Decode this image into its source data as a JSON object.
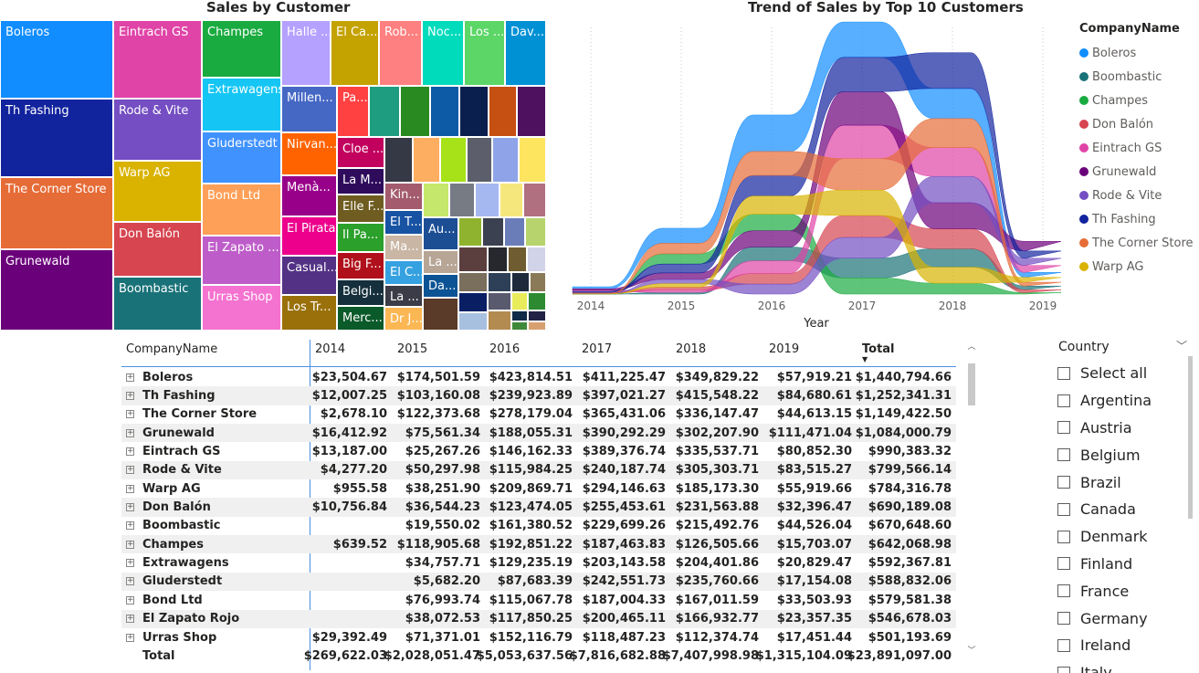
{
  "treemap": {
    "title": "Sales by Customer",
    "tiles": [
      {
        "label": "Boleros",
        "color": "#118dff"
      },
      {
        "label": "Th Fashing",
        "color": "#12239e"
      },
      {
        "label": "The Corner Store",
        "color": "#e66c37"
      },
      {
        "label": "Grunewald",
        "color": "#6b007b"
      },
      {
        "label": "Eintrach GS",
        "color": "#e044a7"
      },
      {
        "label": "Rode & Vite",
        "color": "#744ec2"
      },
      {
        "label": "Warp AG",
        "color": "#d9b300"
      },
      {
        "label": "Don Balón",
        "color": "#d64550"
      },
      {
        "label": "Boombastic",
        "color": "#197278"
      },
      {
        "label": "Champes",
        "color": "#1aab40"
      },
      {
        "label": "Extrawagens",
        "color": "#15c6f4"
      },
      {
        "label": "Gluderstedt",
        "color": "#4092ff"
      },
      {
        "label": "Bond Ltd",
        "color": "#ffa058"
      },
      {
        "label": "El Zapato ...",
        "color": "#be5dc9"
      },
      {
        "label": "Urras Shop",
        "color": "#f472d0"
      },
      {
        "label": "Halle ...",
        "color": "#b5a1ff"
      },
      {
        "label": "El Ca...",
        "color": "#c4a200"
      },
      {
        "label": "Rob...",
        "color": "#ff8080"
      },
      {
        "label": "Noc...",
        "color": "#00dbbc"
      },
      {
        "label": "Los ...",
        "color": "#5bd667"
      },
      {
        "label": "Dav...",
        "color": "#0091d5"
      },
      {
        "label": "Millen...",
        "color": "#4668c5"
      },
      {
        "label": "Nirvan...",
        "color": "#ff6300"
      },
      {
        "label": "Menà...",
        "color": "#99008a"
      },
      {
        "label": "El Pirata",
        "color": "#ec008c"
      },
      {
        "label": "Casual...",
        "color": "#533285"
      },
      {
        "label": "Los Tr...",
        "color": "#99700a"
      },
      {
        "label": "Pa...",
        "color": "#ff4141"
      },
      {
        "label": "Cloe ...",
        "color": "#c2005e"
      },
      {
        "label": "La M...",
        "color": "#2f0b5c"
      },
      {
        "label": "Elle F...",
        "color": "#6f5c20"
      },
      {
        "label": "Il Pa...",
        "color": "#2ba02b"
      },
      {
        "label": "Big F...",
        "color": "#b0101b"
      },
      {
        "label": "Belgi...",
        "color": "#15303c"
      },
      {
        "label": "Merc...",
        "color": "#0b5a2a"
      },
      {
        "label": "Kin...",
        "color": "#a45b6e"
      },
      {
        "label": "El T...",
        "color": "#1853a3"
      },
      {
        "label": "Ma...",
        "color": "#c9b6a4"
      },
      {
        "label": "El C...",
        "color": "#35a1e0"
      },
      {
        "label": "La ...",
        "color": "#3c3c48"
      },
      {
        "label": "Dr J...",
        "color": "#fcb755"
      },
      {
        "label": "Au...",
        "color": "#1c4e94"
      },
      {
        "label": "La ...",
        "color": "#b7a596"
      },
      {
        "label": "Da...",
        "color": "#0b5394"
      }
    ]
  },
  "stream": {
    "title": "Trend of Sales by Top 10 Customers",
    "x_axis_title": "Year"
  },
  "chart_data": {
    "type": "area",
    "title": "Trend of Sales by Top 10 Customers",
    "xlabel": "Year",
    "ylabel": "",
    "x": [
      "2014",
      "2015",
      "2016",
      "2017",
      "2018",
      "2019"
    ],
    "series": [
      {
        "name": "Boleros",
        "color": "#118dff",
        "values": [
          23504.67,
          174501.59,
          423814.51,
          411225.47,
          349829.22,
          57919.21
        ]
      },
      {
        "name": "Boombastic",
        "color": "#197278",
        "values": [
          0,
          19550.02,
          161380.52,
          229699.26,
          215492.76,
          44526.04
        ]
      },
      {
        "name": "Champes",
        "color": "#1aab40",
        "values": [
          639.52,
          118905.68,
          192851.22,
          187463.83,
          126505.66,
          15703.07
        ]
      },
      {
        "name": "Don Balón",
        "color": "#d64550",
        "values": [
          10756.84,
          36544.23,
          123474.05,
          255453.61,
          231563.88,
          32396.47
        ]
      },
      {
        "name": "Eintrach GS",
        "color": "#e044a7",
        "values": [
          13187.0,
          25267.26,
          146162.33,
          389376.74,
          335537.71,
          80852.3
        ]
      },
      {
        "name": "Grunewald",
        "color": "#6b007b",
        "values": [
          16412.92,
          75561.34,
          188055.31,
          390292.29,
          302207.9,
          111471.04
        ]
      },
      {
        "name": "Rode & Vite",
        "color": "#744ec2",
        "values": [
          4277.2,
          50297.98,
          115984.25,
          240187.74,
          305303.71,
          83515.27
        ]
      },
      {
        "name": "Th Fashing",
        "color": "#12239e",
        "values": [
          12007.25,
          103160.08,
          239923.89,
          397021.27,
          415548.22,
          84680.61
        ]
      },
      {
        "name": "The Corner Store",
        "color": "#e66c37",
        "values": [
          2678.1,
          122373.68,
          278179.04,
          365431.06,
          336147.47,
          44613.15
        ]
      },
      {
        "name": "Warp AG",
        "color": "#d9b300",
        "values": [
          955.58,
          38251.9,
          209869.71,
          294146.63,
          185173.3,
          55919.66
        ]
      }
    ]
  },
  "legend": {
    "title": "CompanyName",
    "items": [
      {
        "label": "Boleros",
        "color": "#118dff"
      },
      {
        "label": "Boombastic",
        "color": "#197278"
      },
      {
        "label": "Champes",
        "color": "#1aab40"
      },
      {
        "label": "Don Balón",
        "color": "#d64550"
      },
      {
        "label": "Eintrach GS",
        "color": "#e044a7"
      },
      {
        "label": "Grunewald",
        "color": "#6b007b"
      },
      {
        "label": "Rode & Vite",
        "color": "#744ec2"
      },
      {
        "label": "Th Fashing",
        "color": "#12239e"
      },
      {
        "label": "The Corner Store",
        "color": "#e66c37"
      },
      {
        "label": "Warp AG",
        "color": "#d9b300"
      }
    ]
  },
  "matrix": {
    "headers": [
      "CompanyName",
      "2014",
      "2015",
      "2016",
      "2017",
      "2018",
      "2019",
      "Total"
    ],
    "rows": [
      {
        "name": "Boleros",
        "values": [
          "$23,504.67",
          "$174,501.59",
          "$423,814.51",
          "$411,225.47",
          "$349,829.22",
          "$57,919.21",
          "$1,440,794.66"
        ]
      },
      {
        "name": "Th Fashing",
        "values": [
          "$12,007.25",
          "$103,160.08",
          "$239,923.89",
          "$397,021.27",
          "$415,548.22",
          "$84,680.61",
          "$1,252,341.31"
        ]
      },
      {
        "name": "The Corner Store",
        "values": [
          "$2,678.10",
          "$122,373.68",
          "$278,179.04",
          "$365,431.06",
          "$336,147.47",
          "$44,613.15",
          "$1,149,422.50"
        ]
      },
      {
        "name": "Grunewald",
        "values": [
          "$16,412.92",
          "$75,561.34",
          "$188,055.31",
          "$390,292.29",
          "$302,207.90",
          "$111,471.04",
          "$1,084,000.79"
        ]
      },
      {
        "name": "Eintrach GS",
        "values": [
          "$13,187.00",
          "$25,267.26",
          "$146,162.33",
          "$389,376.74",
          "$335,537.71",
          "$80,852.30",
          "$990,383.32"
        ]
      },
      {
        "name": "Rode & Vite",
        "values": [
          "$4,277.20",
          "$50,297.98",
          "$115,984.25",
          "$240,187.74",
          "$305,303.71",
          "$83,515.27",
          "$799,566.14"
        ]
      },
      {
        "name": "Warp AG",
        "values": [
          "$955.58",
          "$38,251.90",
          "$209,869.71",
          "$294,146.63",
          "$185,173.30",
          "$55,919.66",
          "$784,316.78"
        ]
      },
      {
        "name": "Don Balón",
        "values": [
          "$10,756.84",
          "$36,544.23",
          "$123,474.05",
          "$255,453.61",
          "$231,563.88",
          "$32,396.47",
          "$690,189.08"
        ]
      },
      {
        "name": "Boombastic",
        "values": [
          "",
          "$19,550.02",
          "$161,380.52",
          "$229,699.26",
          "$215,492.76",
          "$44,526.04",
          "$670,648.60"
        ]
      },
      {
        "name": "Champes",
        "values": [
          "$639.52",
          "$118,905.68",
          "$192,851.22",
          "$187,463.83",
          "$126,505.66",
          "$15,703.07",
          "$642,068.98"
        ]
      },
      {
        "name": "Extrawagens",
        "values": [
          "",
          "$34,757.71",
          "$129,235.19",
          "$203,143.58",
          "$204,401.86",
          "$20,829.47",
          "$592,367.81"
        ]
      },
      {
        "name": "Gluderstedt",
        "values": [
          "",
          "$5,682.20",
          "$87,683.39",
          "$242,551.73",
          "$235,760.66",
          "$17,154.08",
          "$588,832.06"
        ]
      },
      {
        "name": "Bond Ltd",
        "values": [
          "",
          "$76,993.74",
          "$115,067.78",
          "$187,004.33",
          "$167,011.59",
          "$33,503.93",
          "$579,581.38"
        ]
      },
      {
        "name": "El Zapato Rojo",
        "values": [
          "",
          "$38,072.53",
          "$117,850.25",
          "$200,465.11",
          "$166,932.77",
          "$23,357.35",
          "$546,678.03"
        ]
      },
      {
        "name": "Urras Shop",
        "values": [
          "$29,392.49",
          "$71,371.01",
          "$152,116.79",
          "$118,487.23",
          "$112,374.74",
          "$17,451.44",
          "$501,193.69"
        ]
      }
    ],
    "total": {
      "name": "Total",
      "values": [
        "$269,622.03",
        "$2,028,051.47",
        "$5,053,637.56",
        "$7,816,682.88",
        "$7,407,998.98",
        "$1,315,104.09",
        "$23,891,097.00"
      ]
    }
  },
  "slicer": {
    "title": "Country",
    "items": [
      "Select all",
      "Argentina",
      "Austria",
      "Belgium",
      "Brazil",
      "Canada",
      "Denmark",
      "Finland",
      "France",
      "Germany",
      "Ireland",
      "Italy"
    ]
  }
}
